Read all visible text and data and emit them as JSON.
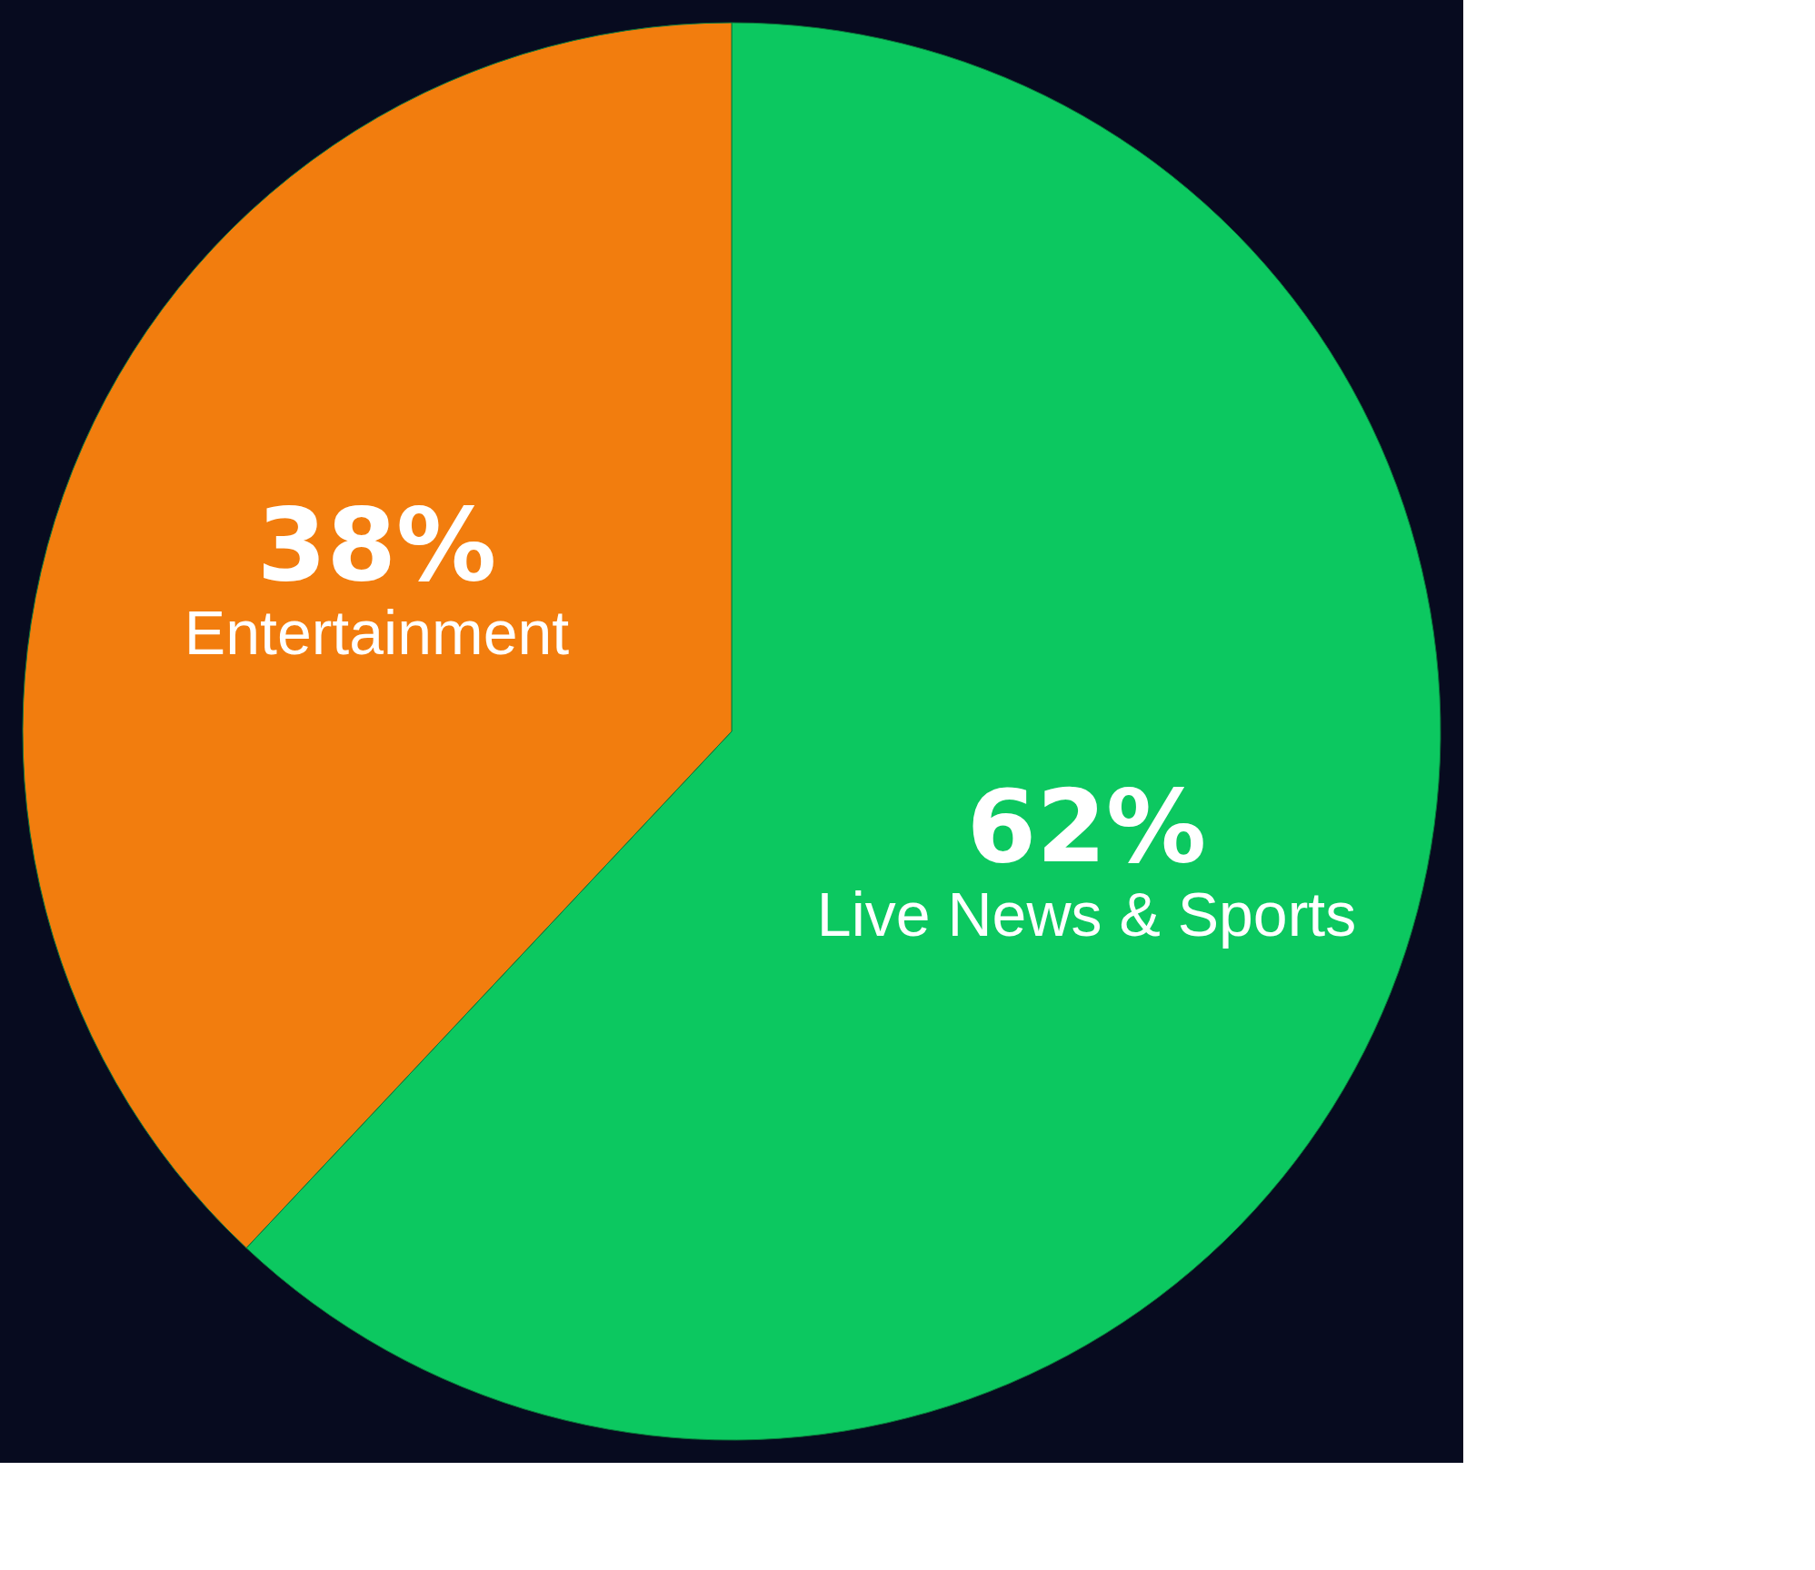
{
  "chart_data": {
    "type": "pie",
    "categories": [
      "Live News & Sports",
      "Entertainment"
    ],
    "values": [
      62,
      38
    ],
    "colors": [
      "#0cc860",
      "#f27d0e"
    ],
    "value_labels": [
      "62%",
      "38%"
    ],
    "legend": false
  }
}
